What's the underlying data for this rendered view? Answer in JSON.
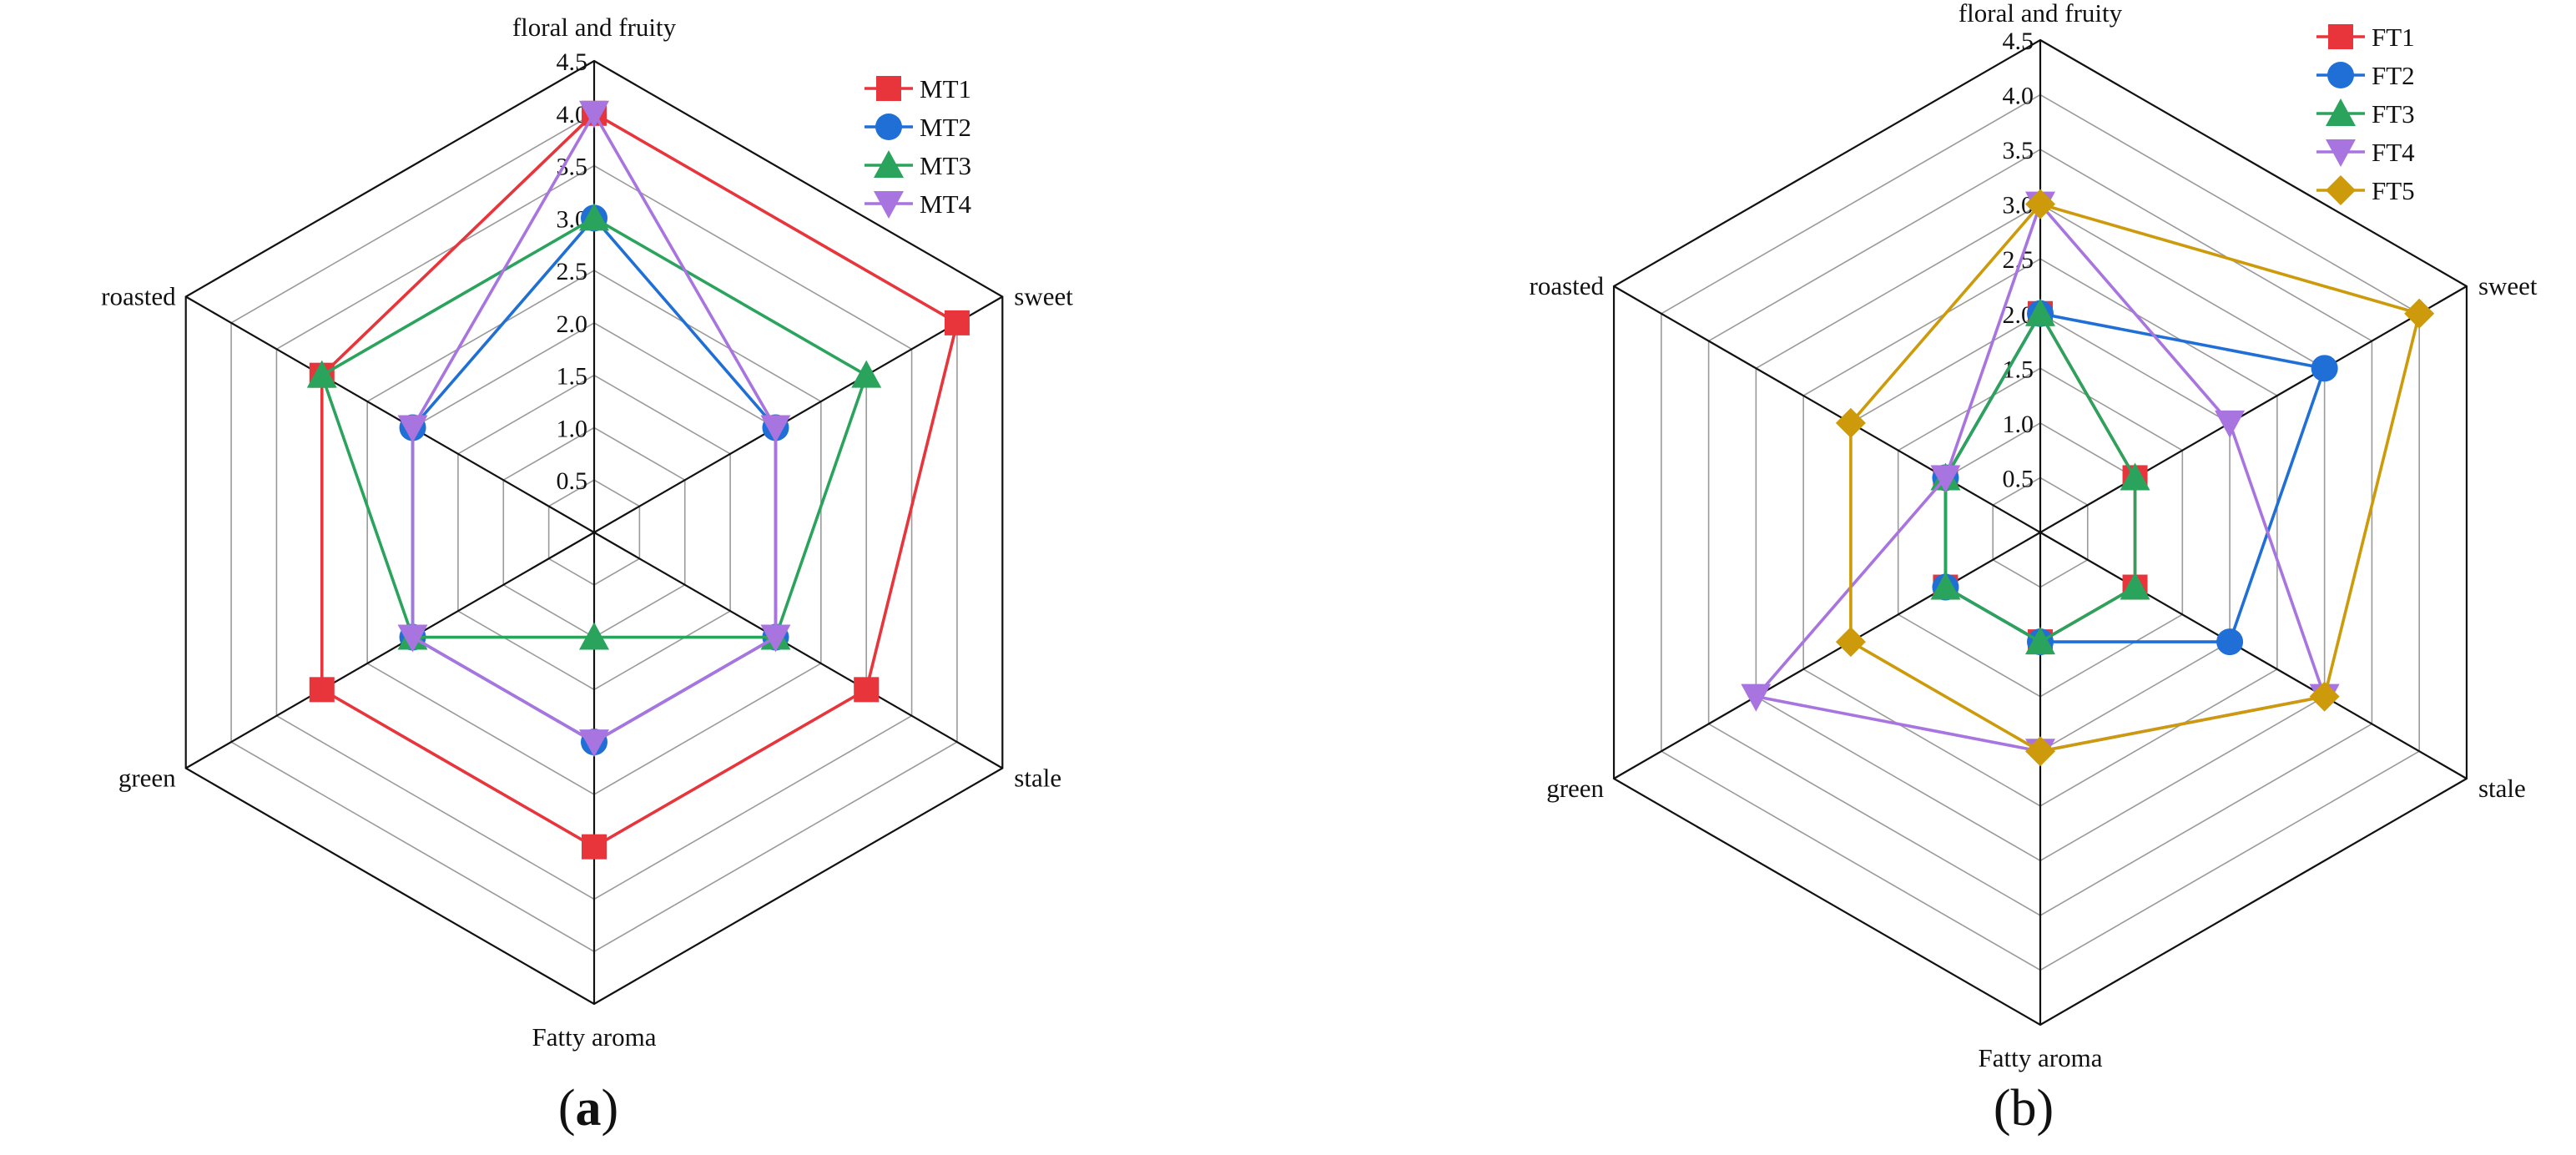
{
  "panels": [
    {
      "letter": "a",
      "open": "(",
      "close": ")"
    },
    {
      "letter": "b",
      "open": "(",
      "close": ")"
    }
  ],
  "chart_data": [
    {
      "type": "radar",
      "axes": [
        "floral and fruity",
        "sweet",
        "stale",
        "Fatty aroma",
        "green",
        "roasted"
      ],
      "range": [
        0,
        4.5
      ],
      "ticks": [
        "0.5",
        "1.0",
        "1.5",
        "2.0",
        "2.5",
        "3.0",
        "3.5",
        "4.0",
        "4.5"
      ],
      "grid": true,
      "legend": "top-right",
      "series": [
        {
          "name": "MT1",
          "color": "#e8353b",
          "marker": "square",
          "values": [
            4,
            4,
            3,
            3,
            3,
            3
          ]
        },
        {
          "name": "MT2",
          "color": "#1f6fd6",
          "marker": "circle",
          "values": [
            3,
            2,
            2,
            2,
            2,
            2
          ]
        },
        {
          "name": "MT3",
          "color": "#2aa35c",
          "marker": "triangle-up",
          "values": [
            3,
            3,
            2,
            1,
            2,
            3
          ]
        },
        {
          "name": "MT4",
          "color": "#a874e0",
          "marker": "triangle-down",
          "values": [
            4,
            2,
            2,
            2,
            2,
            2
          ]
        }
      ]
    },
    {
      "type": "radar",
      "axes": [
        "floral and fruity",
        "sweet",
        "stale",
        "Fatty aroma",
        "green",
        "roasted"
      ],
      "range": [
        0,
        4.5
      ],
      "ticks": [
        "0.5",
        "1.0",
        "1.5",
        "2.0",
        "2.5",
        "3.0",
        "3.5",
        "4.0",
        "4.5"
      ],
      "grid": true,
      "legend": "top-right",
      "series": [
        {
          "name": "FT1",
          "color": "#e8353b",
          "marker": "square",
          "values": [
            2,
            1,
            1,
            1,
            1,
            1
          ]
        },
        {
          "name": "FT2",
          "color": "#1f6fd6",
          "marker": "circle",
          "values": [
            2,
            3,
            2,
            1,
            1,
            1
          ]
        },
        {
          "name": "FT3",
          "color": "#2aa35c",
          "marker": "triangle-up",
          "values": [
            2,
            1,
            1,
            1,
            1,
            1
          ]
        },
        {
          "name": "FT4",
          "color": "#a874e0",
          "marker": "triangle-down",
          "values": [
            3,
            2,
            3,
            2,
            3,
            1
          ]
        },
        {
          "name": "FT5",
          "color": "#cc9a0a",
          "marker": "diamond",
          "values": [
            3,
            4,
            3,
            2,
            2,
            2
          ]
        }
      ]
    }
  ]
}
